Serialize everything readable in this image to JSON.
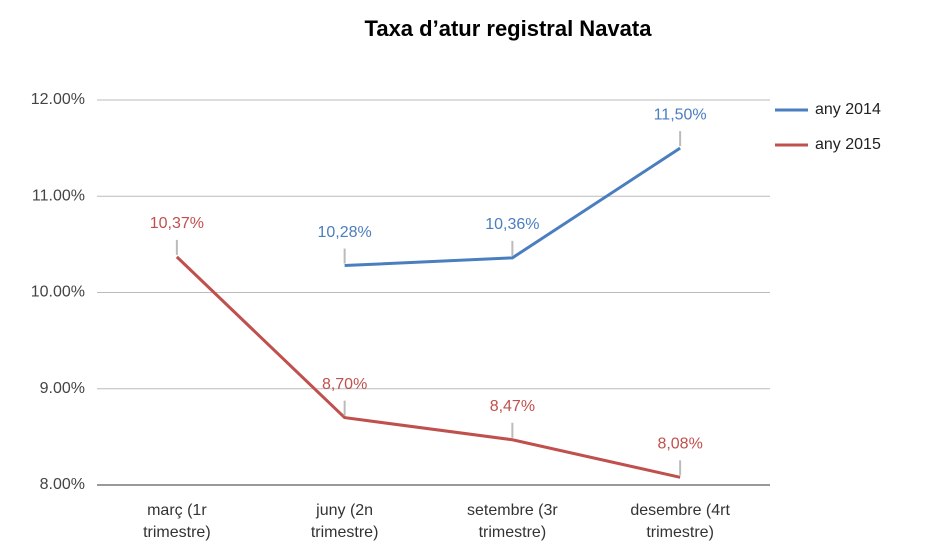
{
  "chart_data": {
    "type": "line",
    "title": "Taxa d’atur registral Navata",
    "categories": [
      "març (1r trimestre)",
      "juny (2n trimestre)",
      "setembre (3r trimestre)",
      "desembre (4rt trimestre)"
    ],
    "series": [
      {
        "name": "any 2014",
        "color": "#4a7ebf",
        "values": [
          null,
          10.28,
          10.36,
          11.5
        ],
        "value_labels": [
          null,
          "10,28%",
          "10,36%",
          "11,50%"
        ]
      },
      {
        "name": "any 2015",
        "color": "#c0504d",
        "values": [
          10.37,
          8.7,
          8.47,
          8.08
        ],
        "value_labels": [
          "10,37%",
          "8,70%",
          "8,47%",
          "8,08%"
        ]
      }
    ],
    "ylim": [
      8,
      12
    ],
    "yticks": [
      {
        "value": 8,
        "label": "8.00%"
      },
      {
        "value": 9,
        "label": "9.00%"
      },
      {
        "value": 10,
        "label": "10.00%"
      },
      {
        "value": 11,
        "label": "11.00%"
      },
      {
        "value": 12,
        "label": "12.00%"
      }
    ],
    "grid": true,
    "legend": "right"
  }
}
